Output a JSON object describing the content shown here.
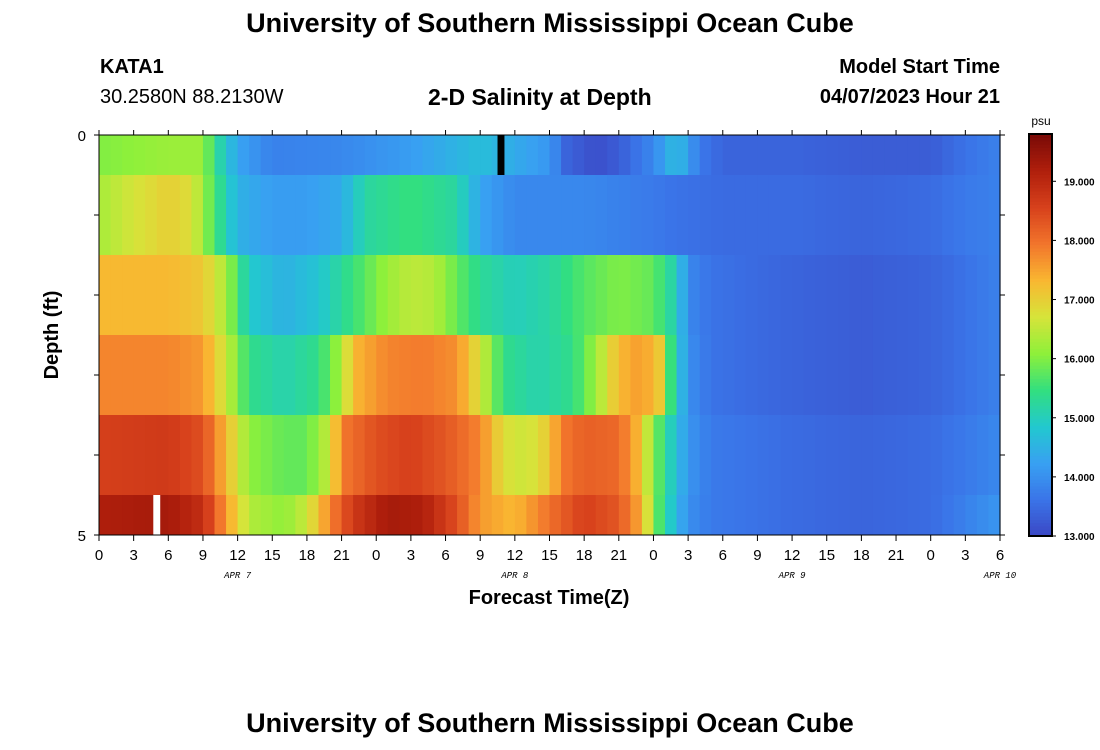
{
  "header": {
    "title": "University of Southern Mississippi Ocean Cube",
    "station": "KATA1",
    "coords": "30.2580N  88.2130W",
    "subtitle": "2-D Salinity at Depth",
    "start_label": "Model Start Time",
    "start_value": "04/07/2023 Hour 21"
  },
  "footer": {
    "title": "University of Southern Mississippi Ocean Cube"
  },
  "colorbar": {
    "unit": "psu",
    "ticks": [
      "19.000",
      "18.000",
      "17.000",
      "16.000",
      "15.000",
      "14.000",
      "13.000"
    ],
    "tick_values": [
      19,
      18,
      17,
      16,
      15,
      14,
      13
    ],
    "range": [
      13.0,
      19.8
    ],
    "colors": [
      "#3b47c4",
      "#3a74e8",
      "#38a0f2",
      "#22c8cf",
      "#32df7f",
      "#8ef03a",
      "#d6e43a",
      "#f9b731",
      "#f2752c",
      "#d7411c",
      "#b01f0c",
      "#7a0a07"
    ]
  },
  "chart_data": {
    "type": "heatmap",
    "title": "2-D Salinity at Depth",
    "xlabel": "Forecast Time(Z)",
    "ylabel": "Depth (ft)",
    "zlabel": "psu",
    "x_tick_labels": [
      "0",
      "3",
      "6",
      "9",
      "12",
      "15",
      "18",
      "21",
      "0",
      "3",
      "6",
      "9",
      "12",
      "15",
      "18",
      "21",
      "0",
      "3",
      "6",
      "9",
      "12",
      "15",
      "18",
      "21",
      "0",
      "3",
      "6"
    ],
    "day_labels": [
      {
        "label": "APR 7",
        "hour": 12
      },
      {
        "label": "APR 8",
        "hour": 36
      },
      {
        "label": "APR 9",
        "hour": 60
      },
      {
        "label": "APR 10",
        "hour": 78
      }
    ],
    "xlim_hours": [
      0,
      78
    ],
    "ylim_ft": [
      0,
      5
    ],
    "y_tick_labels": [
      "0",
      "5"
    ],
    "zlim": [
      13.0,
      19.8
    ],
    "rows": [
      {
        "depth_top": 0.0,
        "depth_bottom": 0.5,
        "knots": [
          [
            0,
            16.0
          ],
          [
            6,
            16.2
          ],
          [
            9,
            16.2
          ],
          [
            10,
            15.4
          ],
          [
            12,
            14.3
          ],
          [
            15,
            13.8
          ],
          [
            21,
            13.9
          ],
          [
            27,
            14.2
          ],
          [
            33,
            14.7
          ],
          [
            39,
            14.1
          ],
          [
            40.5,
            13.4
          ],
          [
            43,
            13.1
          ],
          [
            45,
            13.3
          ],
          [
            48,
            13.9
          ],
          [
            50,
            14.7
          ],
          [
            51,
            14.2
          ],
          [
            52,
            13.7
          ],
          [
            54,
            13.4
          ],
          [
            60,
            13.4
          ],
          [
            66,
            13.3
          ],
          [
            72,
            13.3
          ],
          [
            75,
            13.6
          ],
          [
            78,
            13.8
          ]
        ]
      },
      {
        "depth_top": 0.5,
        "depth_bottom": 1.5,
        "knots": [
          [
            0,
            16.3
          ],
          [
            3,
            16.7
          ],
          [
            6,
            17.0
          ],
          [
            8,
            16.8
          ],
          [
            10,
            15.6
          ],
          [
            12,
            14.5
          ],
          [
            15,
            14.2
          ],
          [
            18,
            14.2
          ],
          [
            21,
            14.4
          ],
          [
            23,
            15.2
          ],
          [
            27,
            15.5
          ],
          [
            31,
            15.2
          ],
          [
            33,
            14.3
          ],
          [
            36,
            13.9
          ],
          [
            39,
            13.9
          ],
          [
            42,
            13.9
          ],
          [
            45,
            13.8
          ],
          [
            48,
            13.7
          ],
          [
            50,
            13.6
          ],
          [
            54,
            13.5
          ],
          [
            60,
            13.5
          ],
          [
            66,
            13.4
          ],
          [
            72,
            13.5
          ],
          [
            75,
            13.7
          ],
          [
            78,
            13.8
          ]
        ]
      },
      {
        "depth_top": 1.5,
        "depth_bottom": 2.5,
        "knots": [
          [
            0,
            17.3
          ],
          [
            6,
            17.3
          ],
          [
            9,
            17.1
          ],
          [
            11,
            16.3
          ],
          [
            13,
            14.9
          ],
          [
            16,
            14.5
          ],
          [
            19,
            14.8
          ],
          [
            22,
            15.5
          ],
          [
            25,
            16.2
          ],
          [
            27,
            16.5
          ],
          [
            29,
            16.4
          ],
          [
            31,
            15.8
          ],
          [
            33,
            15.3
          ],
          [
            36,
            15.0
          ],
          [
            39,
            15.2
          ],
          [
            42,
            15.7
          ],
          [
            45,
            16.0
          ],
          [
            48,
            15.8
          ],
          [
            50,
            15.0
          ],
          [
            51,
            13.9
          ],
          [
            53,
            13.6
          ],
          [
            60,
            13.4
          ],
          [
            66,
            13.3
          ],
          [
            72,
            13.4
          ],
          [
            75,
            13.6
          ],
          [
            78,
            13.8
          ]
        ]
      },
      {
        "depth_top": 2.5,
        "depth_bottom": 3.5,
        "knots": [
          [
            0,
            17.8
          ],
          [
            6,
            17.8
          ],
          [
            9,
            17.6
          ],
          [
            11,
            16.6
          ],
          [
            13,
            15.4
          ],
          [
            16,
            15.1
          ],
          [
            19,
            15.4
          ],
          [
            21,
            16.3
          ],
          [
            22,
            17.3
          ],
          [
            25,
            17.8
          ],
          [
            28,
            17.9
          ],
          [
            31,
            17.7
          ],
          [
            33,
            16.7
          ],
          [
            35,
            15.4
          ],
          [
            38,
            15.1
          ],
          [
            41,
            15.4
          ],
          [
            43,
            16.2
          ],
          [
            45,
            17.3
          ],
          [
            47,
            17.6
          ],
          [
            48.5,
            17.1
          ],
          [
            49.5,
            15.5
          ],
          [
            51,
            14.0
          ],
          [
            53,
            13.6
          ],
          [
            60,
            13.4
          ],
          [
            66,
            13.3
          ],
          [
            72,
            13.4
          ],
          [
            75,
            13.6
          ],
          [
            78,
            13.8
          ]
        ]
      },
      {
        "depth_top": 3.5,
        "depth_bottom": 4.5,
        "knots": [
          [
            0,
            18.6
          ],
          [
            6,
            18.7
          ],
          [
            9,
            18.4
          ],
          [
            11,
            17.3
          ],
          [
            13,
            16.1
          ],
          [
            16,
            15.8
          ],
          [
            18,
            15.8
          ],
          [
            20,
            16.6
          ],
          [
            21,
            17.9
          ],
          [
            24,
            18.4
          ],
          [
            27,
            18.6
          ],
          [
            30,
            18.3
          ],
          [
            33,
            17.8
          ],
          [
            35,
            16.8
          ],
          [
            37,
            16.6
          ],
          [
            39,
            17.1
          ],
          [
            40,
            17.9
          ],
          [
            42,
            18.2
          ],
          [
            45,
            18.1
          ],
          [
            46.5,
            17.4
          ],
          [
            48,
            16.1
          ],
          [
            49,
            15.3
          ],
          [
            51,
            14.1
          ],
          [
            53,
            13.7
          ],
          [
            60,
            13.5
          ],
          [
            66,
            13.4
          ],
          [
            72,
            13.5
          ],
          [
            75,
            13.7
          ],
          [
            78,
            13.9
          ]
        ]
      },
      {
        "depth_top": 4.5,
        "depth_bottom": 5.0,
        "knots": [
          [
            0,
            19.2
          ],
          [
            6,
            19.3
          ],
          [
            9,
            18.9
          ],
          [
            11,
            17.6
          ],
          [
            13,
            16.4
          ],
          [
            16,
            16.1
          ],
          [
            18,
            16.6
          ],
          [
            20,
            17.8
          ],
          [
            22,
            18.7
          ],
          [
            25,
            19.3
          ],
          [
            28,
            19.2
          ],
          [
            31,
            18.4
          ],
          [
            33,
            17.6
          ],
          [
            36,
            17.3
          ],
          [
            39,
            18.0
          ],
          [
            42,
            18.6
          ],
          [
            45,
            18.3
          ],
          [
            47,
            17.4
          ],
          [
            48,
            16.1
          ],
          [
            49,
            15.2
          ],
          [
            51,
            14.0
          ],
          [
            53,
            13.7
          ],
          [
            60,
            13.5
          ],
          [
            66,
            13.4
          ],
          [
            72,
            13.5
          ],
          [
            75,
            13.8
          ],
          [
            78,
            14.1
          ]
        ]
      }
    ],
    "missing_markers": [
      {
        "hour_start": 34.5,
        "hour_end": 35.1,
        "depth_top": 0.0,
        "depth_bottom": 0.5,
        "color": "#000000"
      },
      {
        "hour_start": 4.7,
        "hour_end": 5.3,
        "depth_top": 4.5,
        "depth_bottom": 5.0,
        "color": "#ffffff"
      }
    ]
  }
}
